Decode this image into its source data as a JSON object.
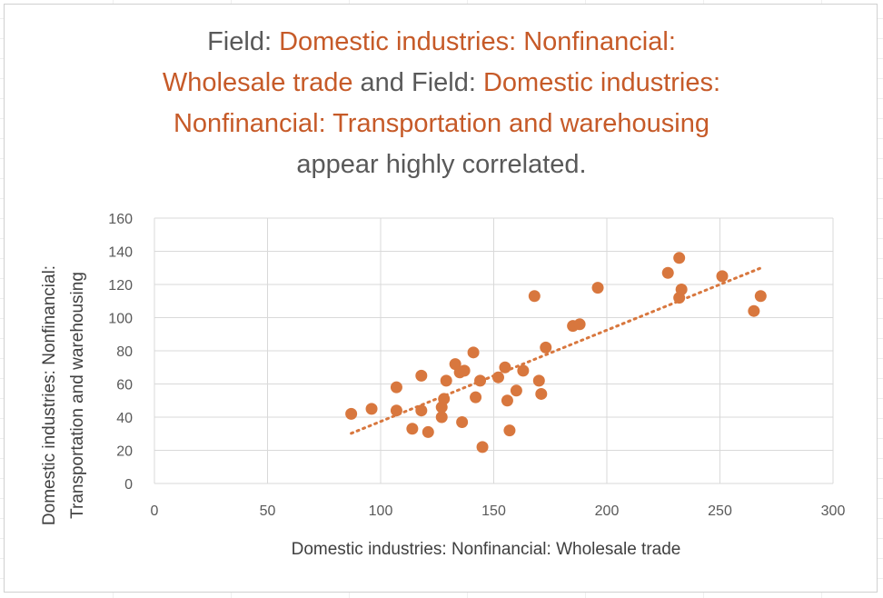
{
  "title": {
    "p1": "Field: ",
    "field1": "Domestic industries: Nonfinancial: Wholesale trade",
    "p2": " and Field: ",
    "field2": "Domestic industries: Nonfinancial: Transportation and warehousing",
    "p3": " appear highly correlated."
  },
  "colors": {
    "accent": "#c65a28",
    "marker": "#d8773e",
    "text": "#595959",
    "grid": "#d9d9d9"
  },
  "chart_data": {
    "type": "scatter",
    "xlabel": "Domestic industries: Nonfinancial: Wholesale trade",
    "ylabel_line1": "Domestic industries: Nonfinancial:",
    "ylabel_line2": "Transportation and warehousing",
    "xlim": [
      0,
      300
    ],
    "ylim": [
      0,
      160
    ],
    "xticks": [
      "0",
      "50",
      "100",
      "150",
      "200",
      "250",
      "300"
    ],
    "yticks": [
      "0",
      "20",
      "40",
      "60",
      "80",
      "100",
      "120",
      "140",
      "160"
    ],
    "grid": true,
    "trendline": {
      "style": "dotted linear",
      "x_start": 87,
      "x_end": 268
    },
    "points": [
      [
        87,
        42
      ],
      [
        96,
        45
      ],
      [
        107,
        58
      ],
      [
        107,
        44
      ],
      [
        114,
        33
      ],
      [
        118,
        65
      ],
      [
        118,
        44
      ],
      [
        121,
        31
      ],
      [
        127,
        46
      ],
      [
        127,
        40
      ],
      [
        128,
        51
      ],
      [
        129,
        62
      ],
      [
        133,
        72
      ],
      [
        135,
        67
      ],
      [
        136,
        37
      ],
      [
        137,
        68
      ],
      [
        141,
        79
      ],
      [
        142,
        52
      ],
      [
        144,
        62
      ],
      [
        145,
        22
      ],
      [
        152,
        64
      ],
      [
        155,
        70
      ],
      [
        156,
        50
      ],
      [
        157,
        32
      ],
      [
        160,
        56
      ],
      [
        163,
        68
      ],
      [
        168,
        113
      ],
      [
        170,
        62
      ],
      [
        171,
        54
      ],
      [
        173,
        82
      ],
      [
        185,
        95
      ],
      [
        188,
        96
      ],
      [
        196,
        118
      ],
      [
        227,
        127
      ],
      [
        232,
        136
      ],
      [
        232,
        112
      ],
      [
        233,
        117
      ],
      [
        251,
        125
      ],
      [
        265,
        104
      ],
      [
        268,
        113
      ]
    ]
  }
}
